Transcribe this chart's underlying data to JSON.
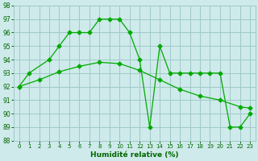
{
  "line1_x": [
    0,
    1,
    3,
    4,
    5,
    6,
    7,
    8,
    9,
    10,
    11,
    12,
    13,
    14,
    15,
    16,
    17,
    18,
    19,
    20,
    21,
    22,
    23
  ],
  "line1_y": [
    92,
    93,
    94,
    95,
    96,
    96,
    96,
    97,
    97,
    97,
    96,
    94,
    89,
    95,
    93,
    93,
    93,
    93,
    93,
    93,
    89,
    89,
    90
  ],
  "line2_x": [
    0,
    2,
    4,
    6,
    8,
    10,
    12,
    14,
    16,
    18,
    20,
    22,
    23
  ],
  "line2_y": [
    92,
    92.5,
    93.1,
    93.5,
    93.8,
    93.7,
    93.2,
    92.5,
    91.8,
    91.3,
    91.0,
    90.5,
    90.4
  ],
  "line_color": "#00aa00",
  "marker": "D",
  "marker_size": 2.5,
  "xlim_min": -0.5,
  "xlim_max": 23.5,
  "ylim_min": 88,
  "ylim_max": 98,
  "yticks": [
    88,
    89,
    90,
    91,
    92,
    93,
    94,
    95,
    96,
    97,
    98
  ],
  "xticks": [
    0,
    1,
    2,
    3,
    4,
    5,
    6,
    7,
    8,
    9,
    10,
    11,
    12,
    13,
    14,
    15,
    16,
    17,
    18,
    19,
    20,
    21,
    22,
    23
  ],
  "xlabel": "Humidité relative (%)",
  "bg_color": "#ceeaea",
  "grid_color": "#a0c8c8",
  "tick_color": "#006600",
  "label_color": "#006600"
}
